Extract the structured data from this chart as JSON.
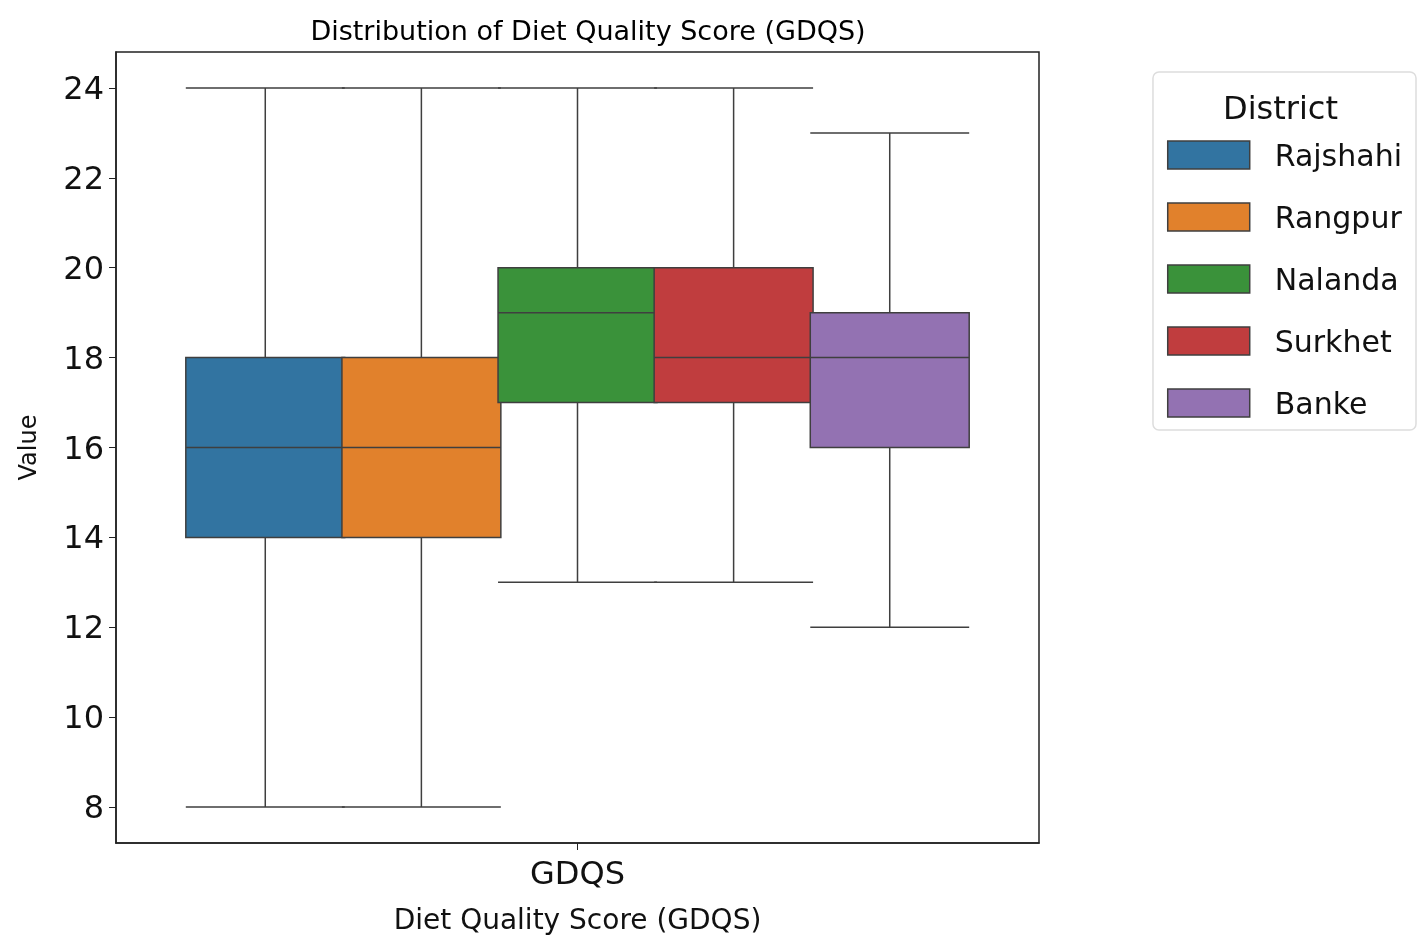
{
  "chart_data": {
    "type": "box",
    "title": "Distribution of Diet Quality Score (GDQS)",
    "xlabel": "Diet Quality Score (GDQS)",
    "ylabel": "Value",
    "legend_title": "District",
    "categories": [
      "GDQS"
    ],
    "series": [
      {
        "name": "Rajshahi",
        "color": "#3274a1",
        "boxes": [
          {
            "low": 8,
            "q1": 14,
            "median": 16,
            "q3": 18,
            "high": 24
          }
        ]
      },
      {
        "name": "Rangpur",
        "color": "#e1812c",
        "boxes": [
          {
            "low": 8,
            "q1": 14,
            "median": 16,
            "q3": 18,
            "high": 24
          }
        ]
      },
      {
        "name": "Nalanda",
        "color": "#3a923a",
        "boxes": [
          {
            "low": 13,
            "q1": 17,
            "median": 19,
            "q3": 20,
            "high": 24
          }
        ]
      },
      {
        "name": "Surkhet",
        "color": "#c03d3e",
        "boxes": [
          {
            "low": 13,
            "q1": 17,
            "median": 18,
            "q3": 20,
            "high": 24
          }
        ]
      },
      {
        "name": "Banke",
        "color": "#9372b2",
        "boxes": [
          {
            "low": 12,
            "q1": 16,
            "median": 18,
            "q3": 19,
            "high": 23
          }
        ]
      }
    ],
    "ylim": [
      7.2,
      24.8
    ],
    "yticks": [
      8,
      10,
      12,
      14,
      16,
      18,
      20,
      22,
      24
    ],
    "grid": false,
    "legend": "top right"
  }
}
